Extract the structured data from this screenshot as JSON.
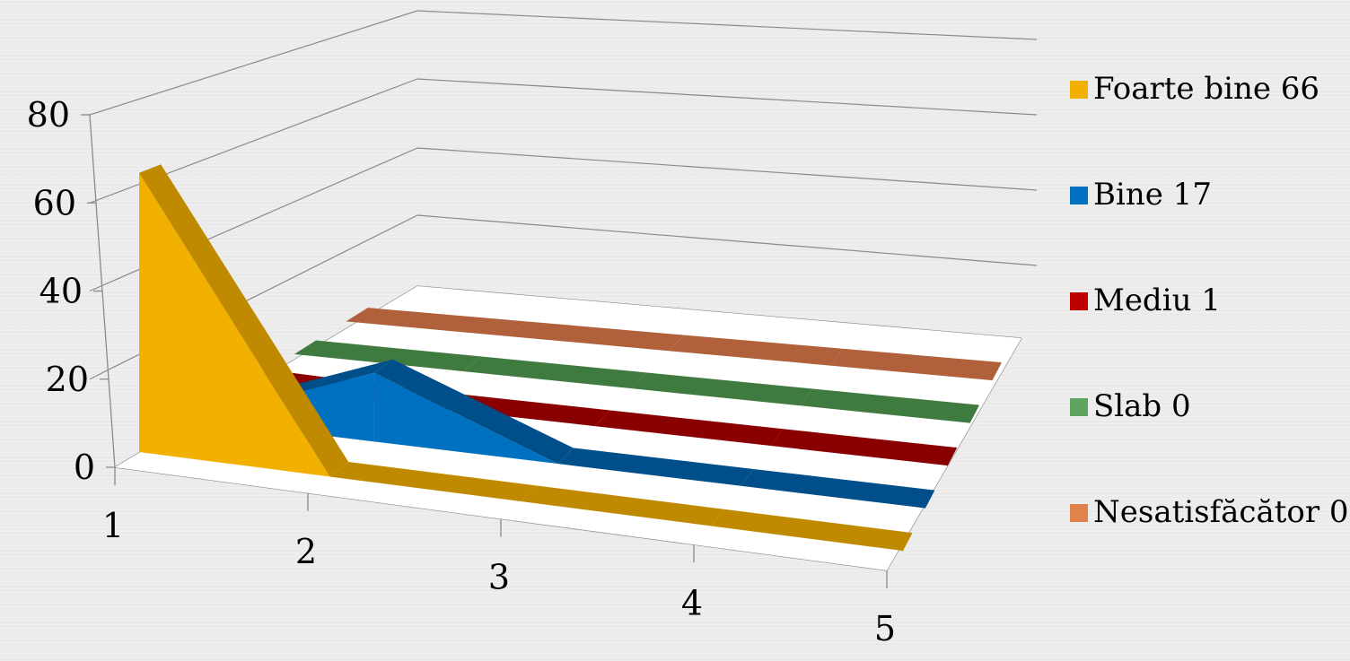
{
  "chart_data": {
    "type": "line",
    "three_d": true,
    "categories": [
      "1",
      "2",
      "3",
      "4",
      "5"
    ],
    "ylim": [
      0,
      80
    ],
    "y_ticks": [
      "0",
      "20",
      "40",
      "60",
      "80"
    ],
    "grid": true,
    "legend_position": "right",
    "series": [
      {
        "name": "Foarte bine 66",
        "values": [
          66,
          0,
          0,
          0,
          0
        ],
        "color": "#f2b000",
        "side": "#bf8a00"
      },
      {
        "name": "Bine 17",
        "values": [
          0,
          17,
          0,
          0,
          0
        ],
        "color": "#0070c0",
        "side": "#004f8a"
      },
      {
        "name": "Mediu 1",
        "values": [
          1,
          0,
          0,
          0,
          0
        ],
        "color": "#c00000",
        "side": "#8a0000"
      },
      {
        "name": "Slab 0",
        "values": [
          0,
          0,
          0,
          0,
          0
        ],
        "color": "#5ea45e",
        "side": "#3f7a3f"
      },
      {
        "name": "Nesatisfăcător 0",
        "values": [
          0,
          0,
          0,
          0,
          0
        ],
        "color": "#e0824a",
        "side": "#b0603a"
      }
    ]
  }
}
